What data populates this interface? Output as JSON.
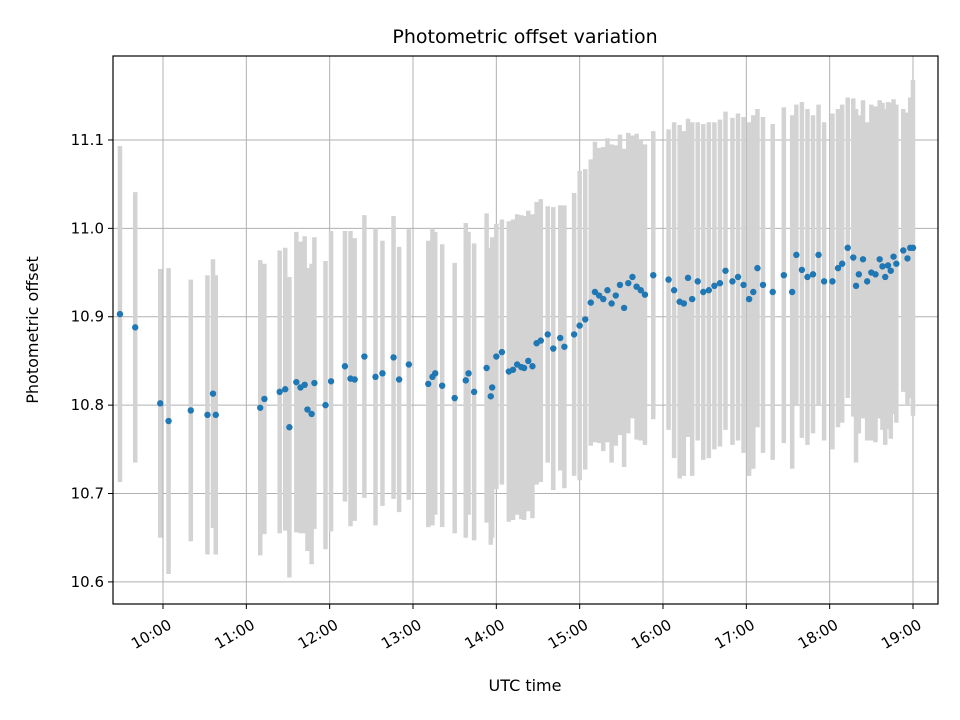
{
  "chart_data": {
    "type": "scatter",
    "title": "Photometric offset variation",
    "xlabel": "UTC time",
    "ylabel": "Photometric offset",
    "x_is_time": true,
    "xlim": [
      "09:24",
      "19:18"
    ],
    "ylim": [
      10.575,
      11.195
    ],
    "x_ticks": [
      "10:00",
      "11:00",
      "12:00",
      "13:00",
      "14:00",
      "15:00",
      "16:00",
      "17:00",
      "18:00",
      "19:00"
    ],
    "y_ticks": [
      10.6,
      10.7,
      10.8,
      10.9,
      11.0,
      11.1
    ],
    "y_tick_labels": [
      "10.6",
      "10.7",
      "10.8",
      "10.9",
      "11.0",
      "11.1"
    ],
    "grid": true,
    "colors": {
      "points": "#1f77b4",
      "errorbars": "#d3d3d3",
      "grid": "#b0b0b0"
    },
    "points": [
      [
        "09:29",
        10.903,
        0.19
      ],
      [
        "09:40",
        10.888,
        0.153
      ],
      [
        "09:58",
        10.802,
        0.152
      ],
      [
        "10:04",
        10.782,
        0.173
      ],
      [
        "10:20",
        10.794,
        0.148
      ],
      [
        "10:32",
        10.789,
        0.158
      ],
      [
        "10:36",
        10.813,
        0.152
      ],
      [
        "10:38",
        10.789,
        0.158
      ],
      [
        "11:10",
        10.797,
        0.167
      ],
      [
        "11:13",
        10.807,
        0.153
      ],
      [
        "11:24",
        10.815,
        0.16
      ],
      [
        "11:28",
        10.818,
        0.16
      ],
      [
        "11:31",
        10.775,
        0.17
      ],
      [
        "11:36",
        10.826,
        0.17
      ],
      [
        "11:39",
        10.82,
        0.165
      ],
      [
        "11:42",
        10.823,
        0.168
      ],
      [
        "11:44",
        10.795,
        0.16
      ],
      [
        "11:47",
        10.79,
        0.17
      ],
      [
        "11:49",
        10.825,
        0.165
      ],
      [
        "11:57",
        10.8,
        0.163
      ],
      [
        "12:01",
        10.827,
        0.17
      ],
      [
        "12:11",
        10.844,
        0.153
      ],
      [
        "12:15",
        10.83,
        0.167
      ],
      [
        "12:18",
        10.829,
        0.16
      ],
      [
        "12:25",
        10.855,
        0.16
      ],
      [
        "12:33",
        10.832,
        0.168
      ],
      [
        "12:38",
        10.836,
        0.15
      ],
      [
        "12:46",
        10.854,
        0.16
      ],
      [
        "12:50",
        10.829,
        0.15
      ],
      [
        "12:57",
        10.846,
        0.153
      ],
      [
        "13:11",
        10.824,
        0.162
      ],
      [
        "13:14",
        10.832,
        0.168
      ],
      [
        "13:16",
        10.836,
        0.16
      ],
      [
        "13:21",
        10.822,
        0.16
      ],
      [
        "13:30",
        10.808,
        0.153
      ],
      [
        "13:38",
        10.828,
        0.178
      ],
      [
        "13:40",
        10.836,
        0.16
      ],
      [
        "13:44",
        10.815,
        0.168
      ],
      [
        "13:53",
        10.842,
        0.175
      ],
      [
        "13:56",
        10.81,
        0.168
      ],
      [
        "13:57",
        10.82,
        0.17
      ],
      [
        "14:00",
        10.855,
        0.15
      ],
      [
        "14:04",
        10.86,
        0.15
      ],
      [
        "14:09",
        10.838,
        0.17
      ],
      [
        "14:12",
        10.84,
        0.17
      ],
      [
        "14:15",
        10.846,
        0.17
      ],
      [
        "14:18",
        10.843,
        0.172
      ],
      [
        "14:20",
        10.842,
        0.172
      ],
      [
        "14:23",
        10.85,
        0.17
      ],
      [
        "14:26",
        10.844,
        0.172
      ],
      [
        "14:29",
        10.87,
        0.16
      ],
      [
        "14:32",
        10.873,
        0.16
      ],
      [
        "14:37",
        10.88,
        0.145
      ],
      [
        "14:41",
        10.864,
        0.16
      ],
      [
        "14:46",
        10.876,
        0.15
      ],
      [
        "14:49",
        10.866,
        0.16
      ],
      [
        "14:56",
        10.88,
        0.16
      ],
      [
        "15:00",
        10.89,
        0.175
      ],
      [
        "15:04",
        10.897,
        0.17
      ],
      [
        "15:08",
        10.916,
        0.162
      ],
      [
        "15:11",
        10.928,
        0.17
      ],
      [
        "15:14",
        10.924,
        0.167
      ],
      [
        "15:17",
        10.92,
        0.172
      ],
      [
        "15:20",
        10.93,
        0.172
      ],
      [
        "15:23",
        10.915,
        0.18
      ],
      [
        "15:26",
        10.924,
        0.17
      ],
      [
        "15:29",
        10.936,
        0.17
      ],
      [
        "15:32",
        10.91,
        0.18
      ],
      [
        "15:35",
        10.938,
        0.17
      ],
      [
        "15:38",
        10.945,
        0.16
      ],
      [
        "15:41",
        10.934,
        0.173
      ],
      [
        "15:44",
        10.93,
        0.17
      ],
      [
        "15:47",
        10.925,
        0.17
      ],
      [
        "15:53",
        10.947,
        0.163
      ],
      [
        "16:04",
        10.942,
        0.17
      ],
      [
        "16:08",
        10.93,
        0.19
      ],
      [
        "16:12",
        10.917,
        0.2
      ],
      [
        "16:15",
        10.915,
        0.195
      ],
      [
        "16:18",
        10.944,
        0.18
      ],
      [
        "16:21",
        10.92,
        0.2
      ],
      [
        "16:25",
        10.94,
        0.18
      ],
      [
        "16:29",
        10.928,
        0.19
      ],
      [
        "16:33",
        10.93,
        0.19
      ],
      [
        "16:37",
        10.935,
        0.185
      ],
      [
        "16:41",
        10.938,
        0.185
      ],
      [
        "16:45",
        10.952,
        0.18
      ],
      [
        "16:50",
        10.94,
        0.185
      ],
      [
        "16:54",
        10.945,
        0.185
      ],
      [
        "16:58",
        10.936,
        0.19
      ],
      [
        "17:02",
        10.92,
        0.2
      ],
      [
        "17:05",
        10.928,
        0.2
      ],
      [
        "17:08",
        10.955,
        0.18
      ],
      [
        "17:12",
        10.936,
        0.19
      ],
      [
        "17:19",
        10.928,
        0.19
      ],
      [
        "17:27",
        10.947,
        0.19
      ],
      [
        "17:33",
        10.928,
        0.2
      ],
      [
        "17:36",
        10.97,
        0.17
      ],
      [
        "17:40",
        10.953,
        0.19
      ],
      [
        "17:44",
        10.945,
        0.19
      ],
      [
        "17:48",
        10.948,
        0.18
      ],
      [
        "17:52",
        10.97,
        0.17
      ],
      [
        "17:56",
        10.94,
        0.18
      ],
      [
        "18:02",
        10.94,
        0.19
      ],
      [
        "18:06",
        10.955,
        0.18
      ],
      [
        "18:09",
        10.96,
        0.18
      ],
      [
        "18:13",
        10.978,
        0.17
      ],
      [
        "18:17",
        10.967,
        0.18
      ],
      [
        "18:19",
        10.935,
        0.2
      ],
      [
        "18:21",
        10.948,
        0.18
      ],
      [
        "18:24",
        10.965,
        0.18
      ],
      [
        "18:27",
        10.94,
        0.18
      ],
      [
        "18:30",
        10.95,
        0.19
      ],
      [
        "18:33",
        10.948,
        0.19
      ],
      [
        "18:36",
        10.965,
        0.18
      ],
      [
        "18:38",
        10.957,
        0.185
      ],
      [
        "18:40",
        10.945,
        0.19
      ],
      [
        "18:42",
        10.958,
        0.185
      ],
      [
        "18:44",
        10.952,
        0.19
      ],
      [
        "18:46",
        10.968,
        0.178
      ],
      [
        "18:48",
        10.96,
        0.18
      ],
      [
        "18:53",
        10.975,
        0.16
      ],
      [
        "18:56",
        10.966,
        0.165
      ],
      [
        "18:58",
        10.978,
        0.17
      ],
      [
        "19:00",
        10.978,
        0.19
      ]
    ]
  }
}
